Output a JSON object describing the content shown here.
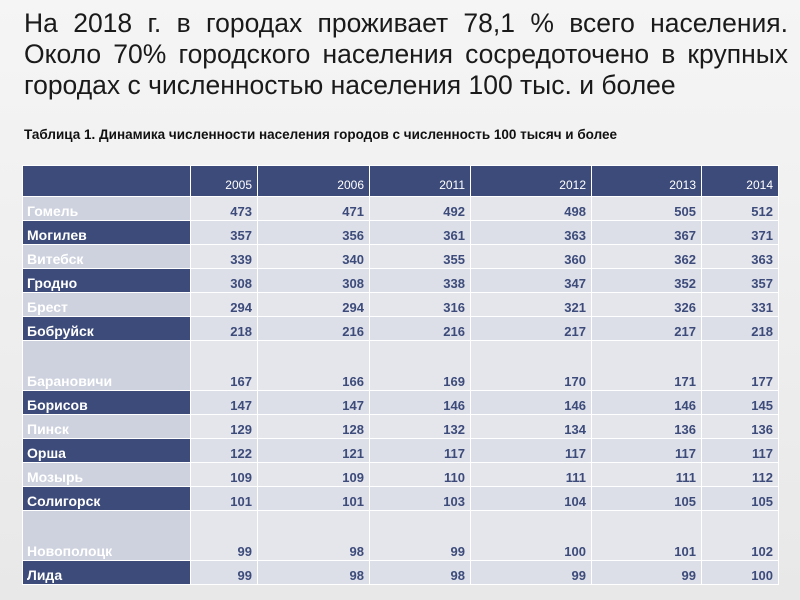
{
  "heading": "На 2018 г. в городах проживает 78,1 % всего населения. Около 70% городского населения сосредоточено в крупных городах с численностью населения 100 тыс. и более",
  "caption": "Таблица 1. Динамика численности населения городов с численность 100 тысяч и более",
  "table": {
    "corner": "",
    "years": [
      "2005",
      "2006",
      "2011",
      "2012",
      "2013",
      "2014"
    ],
    "rows": [
      {
        "city": "Гомель",
        "values": [
          "473",
          "471",
          "492",
          "498",
          "505",
          "512"
        ]
      },
      {
        "city": "Могилев",
        "values": [
          "357",
          "356",
          "361",
          "363",
          "367",
          "371"
        ]
      },
      {
        "city": "Витебск",
        "values": [
          "339",
          "340",
          "355",
          "360",
          "362",
          "363"
        ]
      },
      {
        "city": "Гродно",
        "values": [
          "308",
          "308",
          "338",
          "347",
          "352",
          "357"
        ]
      },
      {
        "city": "Брест",
        "values": [
          "294",
          "294",
          "316",
          "321",
          "326",
          "331"
        ]
      },
      {
        "city": "Бобруйск",
        "values": [
          "218",
          "216",
          "216",
          "217",
          "217",
          "218"
        ]
      },
      {
        "city": "Барановичи",
        "values": [
          "167",
          "166",
          "169",
          "170",
          "171",
          "177"
        ]
      },
      {
        "city": "Борисов",
        "values": [
          "147",
          "147",
          "146",
          "146",
          "146",
          "145"
        ]
      },
      {
        "city": "Пинск",
        "values": [
          "129",
          "128",
          "132",
          "134",
          "136",
          "136"
        ]
      },
      {
        "city": "Орша",
        "values": [
          "122",
          "121",
          "117",
          "117",
          "117",
          "117"
        ]
      },
      {
        "city": "Мозырь",
        "values": [
          "109",
          "109",
          "110",
          "111",
          "111",
          "112"
        ]
      },
      {
        "city": "Солигорск",
        "values": [
          "101",
          "101",
          "103",
          "104",
          "105",
          "105"
        ]
      },
      {
        "city": "Новополоцк",
        "values": [
          "99",
          "98",
          "99",
          "100",
          "101",
          "102"
        ]
      },
      {
        "city": "Лида",
        "values": [
          "99",
          "98",
          "98",
          "99",
          "99",
          "100"
        ]
      }
    ]
  },
  "colors": {
    "header_bg": "#3d4b7a",
    "light_name_bg": "#cdd2de",
    "cell_bg": "#dcdfe8",
    "value_text": "#3d4b7a"
  }
}
